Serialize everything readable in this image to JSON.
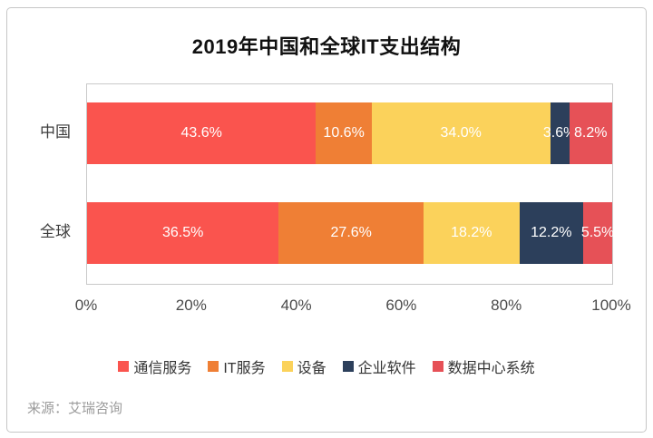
{
  "source": "来源：艾瑞咨询",
  "colors": {
    "communication_red": "#FA544E",
    "it_service_orange": "#EF7F35",
    "equipment_yellow": "#FBD25B",
    "enterprise_navy": "#2C3F5B",
    "datacenter_crimson": "#E65157",
    "card_border": "#c6c6c6",
    "plot_border": "#c9c9c9",
    "axis_text": "#4a4a4a",
    "bar_label_text": "#ffffff",
    "source_text": "#9b9b9b"
  },
  "chart_data": {
    "type": "bar",
    "orientation": "horizontal-stacked",
    "title": "2019年中国和全球IT支出结构",
    "categories": [
      "中国",
      "全球"
    ],
    "series": [
      {
        "name": "通信服务",
        "color": "#FA544E",
        "values": [
          43.6,
          36.5
        ]
      },
      {
        "name": "IT服务",
        "color": "#EF7F35",
        "values": [
          10.6,
          27.6
        ]
      },
      {
        "name": "设备",
        "color": "#FBD25B",
        "values": [
          34.0,
          18.2
        ]
      },
      {
        "name": "企业软件",
        "color": "#2C3F5B",
        "values": [
          3.6,
          12.2
        ]
      },
      {
        "name": "数据中心系统",
        "color": "#E65157",
        "values": [
          8.2,
          5.5
        ]
      }
    ],
    "data_labels": [
      [
        "43.6%",
        "10.6%",
        "34.0%",
        "3.6%",
        "8.2%"
      ],
      [
        "36.5%",
        "27.6%",
        "18.2%",
        "12.2%",
        "5.5%"
      ]
    ],
    "x_ticks": [
      "0%",
      "20%",
      "40%",
      "60%",
      "80%",
      "100%"
    ],
    "xlim": [
      0,
      100
    ],
    "grid": false,
    "legend_position": "bottom"
  }
}
